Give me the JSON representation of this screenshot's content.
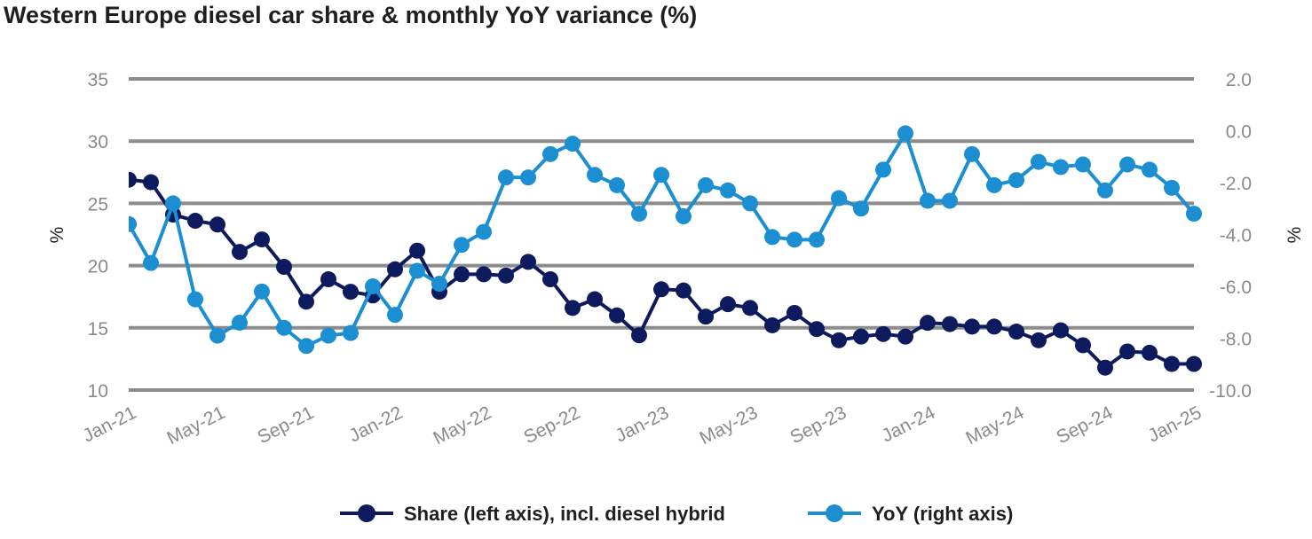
{
  "chart_data": {
    "type": "line",
    "title": "Western Europe diesel car share & monthly YoY variance (%)",
    "x": [
      "Jan-21",
      "Feb-21",
      "Mar-21",
      "Apr-21",
      "May-21",
      "Jun-21",
      "Jul-21",
      "Aug-21",
      "Sep-21",
      "Oct-21",
      "Nov-21",
      "Dec-21",
      "Jan-22",
      "Feb-22",
      "Mar-22",
      "Apr-22",
      "May-22",
      "Jun-22",
      "Jul-22",
      "Aug-22",
      "Sep-22",
      "Oct-22",
      "Nov-22",
      "Dec-22",
      "Jan-23",
      "Feb-23",
      "Mar-23",
      "Apr-23",
      "May-23",
      "Jun-23",
      "Jul-23",
      "Aug-23",
      "Sep-23",
      "Oct-23",
      "Nov-23",
      "Dec-23",
      "Jan-24",
      "Feb-24",
      "Mar-24",
      "Apr-24",
      "May-24",
      "Jun-24",
      "Jul-24",
      "Aug-24",
      "Sep-24",
      "Oct-24",
      "Nov-24",
      "Dec-24",
      "Jan-25"
    ],
    "x_tick_labels": [
      "Jan-21",
      "May-21",
      "Sep-21",
      "Jan-22",
      "May-22",
      "Sep-22",
      "Jan-23",
      "May-23",
      "Sep-23",
      "Jan-24",
      "May-24",
      "Sep-24",
      "Jan-25"
    ],
    "left_axis": {
      "label": "%",
      "ylim": [
        10,
        35
      ],
      "ticks": [
        "10",
        "15",
        "20",
        "25",
        "30",
        "35"
      ]
    },
    "right_axis": {
      "label": "%",
      "ylim": [
        -10,
        2
      ],
      "ticks": [
        "-10.0",
        "-8.0",
        "-6.0",
        "-4.0",
        "-2.0",
        "0.0",
        "2.0"
      ]
    },
    "series": [
      {
        "name": "Share (left axis), incl. diesel hybrid",
        "axis": "left",
        "color": "#0d1b5e",
        "values": [
          26.9,
          26.7,
          24.1,
          23.6,
          23.3,
          21.1,
          22.1,
          19.9,
          17.1,
          18.9,
          17.9,
          17.6,
          19.7,
          21.2,
          17.9,
          19.3,
          19.3,
          19.2,
          20.3,
          18.9,
          16.6,
          17.3,
          16.0,
          14.4,
          18.1,
          18.0,
          15.9,
          16.9,
          16.6,
          15.2,
          16.2,
          14.9,
          14.0,
          14.3,
          14.5,
          14.3,
          15.4,
          15.3,
          15.1,
          15.1,
          14.7,
          14.0,
          14.8,
          13.6,
          11.8,
          13.1,
          13.0,
          12.1,
          12.1
        ]
      },
      {
        "name": "YoY (right axis)",
        "axis": "right",
        "color": "#1b8fd2",
        "values": [
          -3.6,
          -5.1,
          -2.8,
          -6.5,
          -7.9,
          -7.4,
          -6.2,
          -7.6,
          -8.3,
          -7.9,
          -7.8,
          -6.0,
          -7.1,
          -5.4,
          -5.9,
          -4.4,
          -3.9,
          -1.8,
          -1.8,
          -0.9,
          -0.5,
          -1.7,
          -2.1,
          -3.2,
          -1.7,
          -3.3,
          -2.1,
          -2.3,
          -2.8,
          -4.1,
          -4.2,
          -4.2,
          -2.6,
          -3.0,
          -1.5,
          -0.1,
          -2.7,
          -2.7,
          -0.9,
          -2.1,
          -1.9,
          -1.2,
          -1.4,
          -1.3,
          -2.3,
          -1.3,
          -1.5,
          -2.2,
          -3.2
        ]
      }
    ],
    "legend": [
      {
        "label": "Share (left axis), incl. diesel hybrid",
        "color": "#0d1b5e"
      },
      {
        "label": "YoY (right axis)",
        "color": "#1b8fd2"
      }
    ],
    "legend_placement": "bottom-center",
    "grid": true
  }
}
